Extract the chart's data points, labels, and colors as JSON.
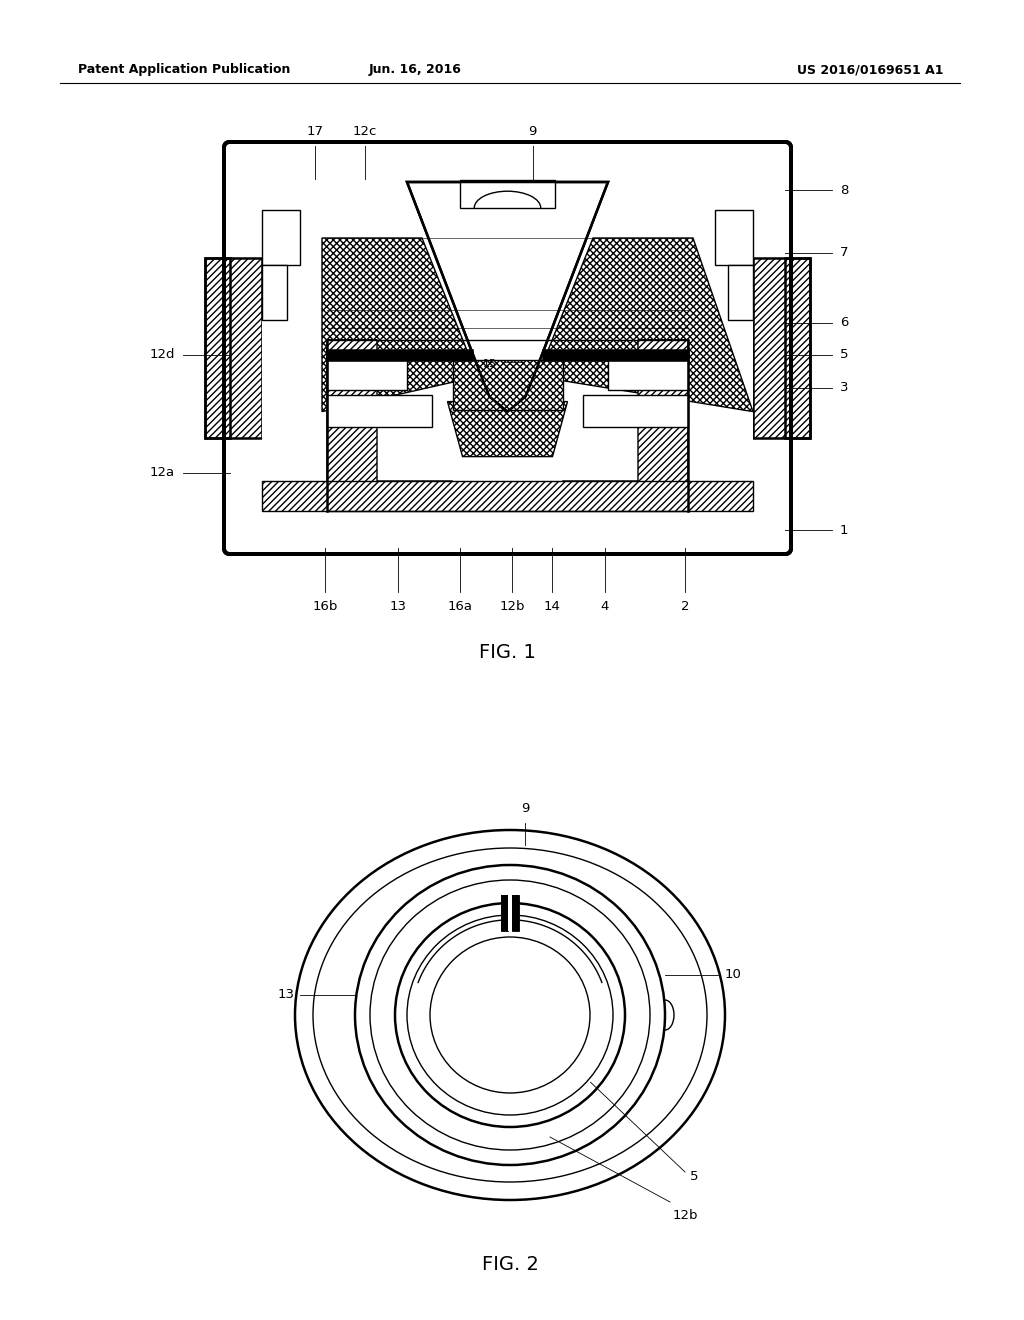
{
  "bg_color": "#ffffff",
  "header_left": "Patent Application Publication",
  "header_center": "Jun. 16, 2016",
  "header_right": "US 2016/0169651 A1",
  "fig1_label": "FIG. 1",
  "fig2_label": "FIG. 2",
  "lc": "#000000"
}
